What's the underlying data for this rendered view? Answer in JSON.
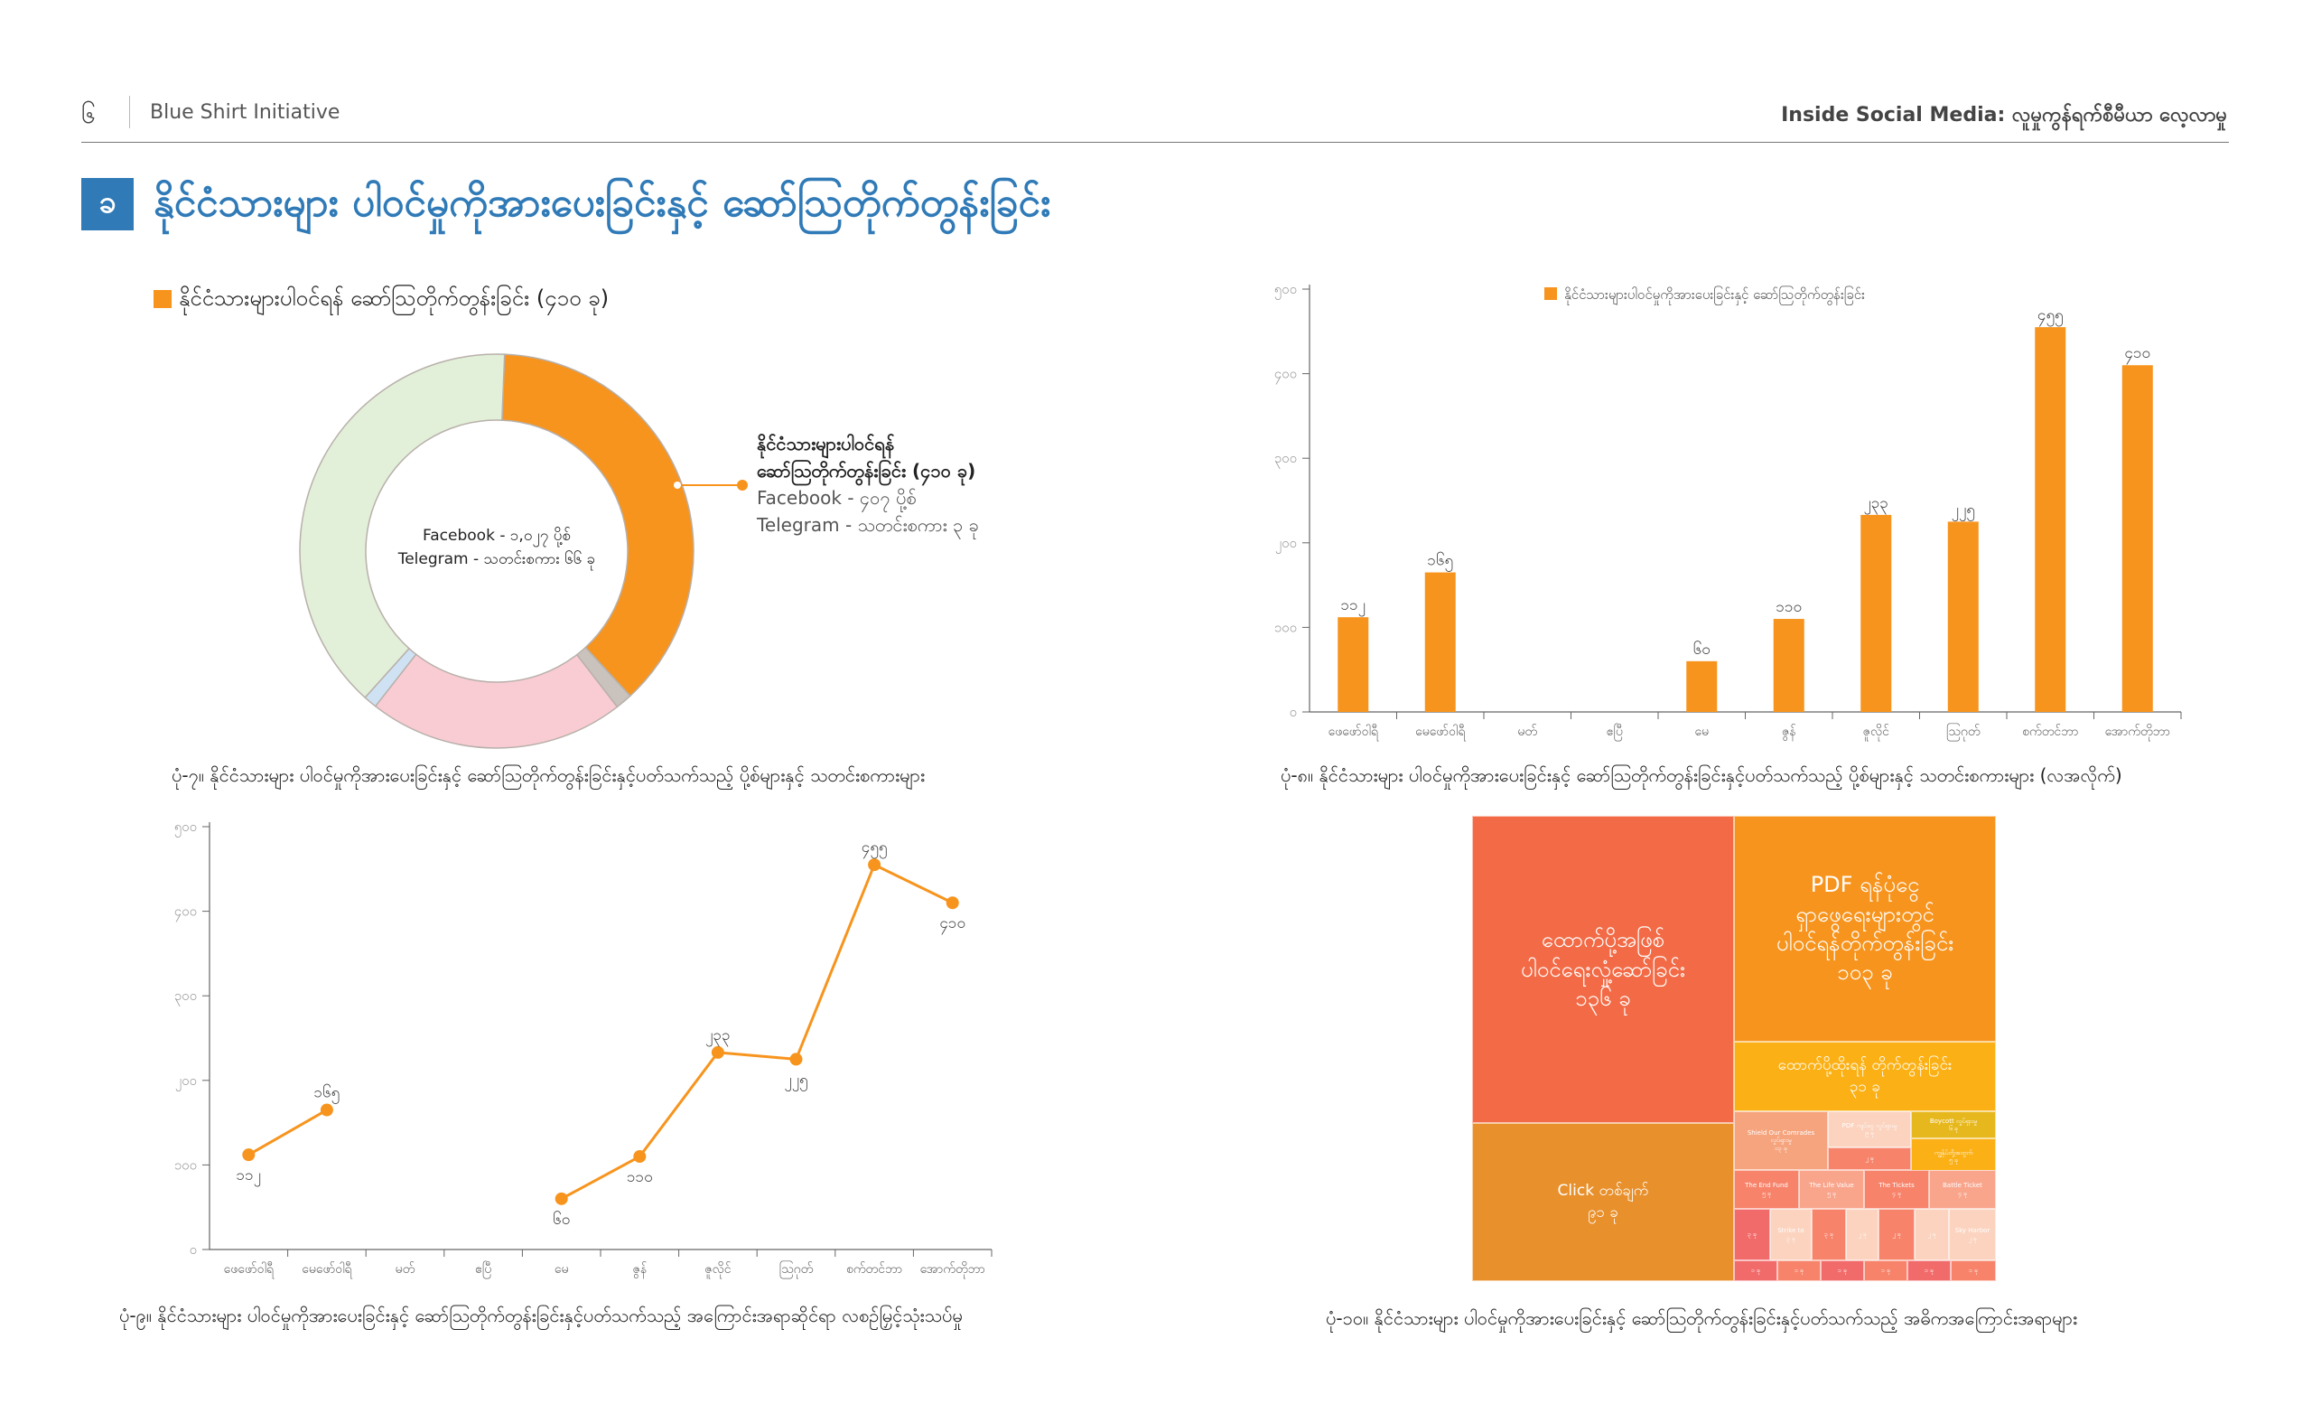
{
  "header": {
    "page_number": "၆",
    "org_name": "Blue Shirt Initiative",
    "report_title": "Inside Social Media: လူမှုကွန်ရက်စီမီယာ လေ့လာမှု"
  },
  "section": {
    "badge": "ခ",
    "title": "နိုင်ငံသားများ ပါဝင်မှုကိုအားပေးခြင်းနှင့် ဆော်သြတိုက်တွန်းခြင်း"
  },
  "colors": {
    "accent_blue": "#2f7ab7",
    "orange": "#f7941d",
    "light_green": "#e2efd9",
    "pink": "#f9ccd3",
    "light_blue": "#cfe2f3"
  },
  "donut": {
    "legend": "နိုင်ငံသားများပါဝင်ရန် ဆော်သြတိုက်တွန်းခြင်း (၄၁၀ ခု)",
    "center_line1": "Facebook - ၁,၀၂၇ ပို့စ်",
    "center_line2": "Telegram - သတင်းစကား ၆၆ ခု",
    "callout_line1": "နိုင်ငံသားများပါဝင်ရန်",
    "callout_line2": "ဆော်သြတိုက်တွန်းခြင်း (၄၁၀ ခု)",
    "callout_line3": "Facebook  -   ၄၀၇ ပို့စ်",
    "callout_line4": "Telegram  -   သတင်းစကား ၃ ခု",
    "caption": "ပုံ-၇။ နိုင်ငံသားများ ပါဝင်မှုကိုအားပေးခြင်းနှင့် ဆော်သြတိုက်တွန်းခြင်းနှင့်ပတ်သက်သည့် ပို့စ်များနှင့် သတင်းစကားများ"
  },
  "bar": {
    "caption": "ပုံ-၈။ နိုင်ငံသားများ ပါဝင်မှုကိုအားပေးခြင်းနှင့် ဆော်သြတိုက်တွန်းခြင်းနှင့်ပတ်သက်သည့် ပို့စ်များနှင့် သတင်းစကားများ (လအလိုက်)"
  },
  "line": {
    "caption": "ပုံ-၉။ နိုင်ငံသားများ ပါဝင်မှုကိုအားပေးခြင်းနှင့် ဆော်သြတိုက်တွန်းခြင်းနှင့်ပတ်သက်သည့် အကြောင်းအရာဆိုင်ရာ လစဉ်မြှင့်သုံးသပ်မှု"
  },
  "treemap": {
    "caption": "ပုံ-၁၀။  နိုင်ငံသားများ ပါဝင်မှုကိုအားပေးခြင်းနှင့် ဆော်သြတိုက်တွန်းခြင်းနှင့်ပတ်သက်သည့် အဓိကအကြောင်းအရာများ",
    "cells": [
      {
        "label": "ထောက်ပို့အဖြစ်\nပါဝင်ရေးလှုံ့ဆော်ခြင်း\n၁၃၆ ခု",
        "color": "#f26b46"
      },
      {
        "label": "PDF ရန်ပုံငွေ\nရှာဖွေရေးများတွင်\nပါဝင်ရန်တိုက်တွန်းခြင်း\n၁၀၃ ခု",
        "color": "#f7941d"
      },
      {
        "label": "ထောက်ပို့ထိုးရန် တိုက်တွန်းခြင်း\n၃၁ ခု",
        "color": "#fbb116"
      },
      {
        "label": "Click တစ်ချက်\n၉၁ ခု",
        "color": "#e8902c"
      },
      {
        "label": "Shield Our Comrades\nလှုပ်ရှားမှု\n၁၃ ခု",
        "color": "#f6a47e"
      },
      {
        "label": "PDF ကျပ်ငွေ လှုပ်ရှားမှု\n၉ ခု",
        "color": "#fbd3bf"
      },
      {
        "label": "Boycott လှုပ်ရှားမှု\n၆ ခု",
        "color": "#e7b81d"
      },
      {
        "label": "ကျွန်ုပ်တို့အတွက်\n၅ ခု",
        "color": "#fbb116"
      },
      {
        "label": "The End Fund\n၅ ခု",
        "color": "#f7836a"
      },
      {
        "label": "The Life Value\n၅ ခု",
        "color": "#f9a58c"
      },
      {
        "label": "The Tickets\n၄ ခု",
        "color": "#f7836a"
      },
      {
        "label": "Battle Ticket\n၄ ခု",
        "color": "#f9a58c"
      },
      {
        "label": "၃ ခု",
        "color": "#f26b6b"
      },
      {
        "label": "Strike to\n၃ ခု",
        "color": "#fbd3bf"
      },
      {
        "label": "၃ ခု",
        "color": "#f7836a"
      },
      {
        "label": "၂ ခု",
        "color": "#fbd3bf"
      },
      {
        "label": "၂ ခု",
        "color": "#f7836a"
      },
      {
        "label": "၂ ခု",
        "color": "#fbd3bf"
      },
      {
        "label": "Sky Harbor\n၂ ခု",
        "color": "#fbd3bf"
      },
      {
        "label": "၂ ခု",
        "color": "#f7836a"
      },
      {
        "label": "၁ ခု",
        "color": "#f26b6b"
      },
      {
        "label": "၁ ခု",
        "color": "#f7836a"
      },
      {
        "label": "၁ ခု",
        "color": "#f26b6b"
      },
      {
        "label": "၁ ခု",
        "color": "#f7836a"
      },
      {
        "label": "၁ ခု",
        "color": "#f26b6b"
      },
      {
        "label": "၁ ခု",
        "color": "#f7836a"
      }
    ]
  },
  "chart_data": [
    {
      "type": "pie",
      "title": "နိုင်ငံသားများပါဝင်ရန် ဆော်သြတိုက်တွန်းခြင်း (၄၁၀ ခု)",
      "slices": [
        {
          "label": "နိုင်ငံသားများပါဝင်ရန် ဆော်သြတိုက်တွန်းခြင်း (၄၁၀ ခု)",
          "value": 410,
          "color": "#f7941d"
        },
        {
          "value": 15,
          "color": "#c9c2bd"
        },
        {
          "value": 230,
          "color": "#f9ccd3"
        },
        {
          "value": 12,
          "color": "#cfe2f3"
        },
        {
          "value": 426,
          "color": "#e2efd9"
        }
      ]
    },
    {
      "type": "bar",
      "legend": "နိုင်ငံသားများပါဝင်မှုကိုအားပေးခြင်းနှင့် ဆော်သြတိုက်တွန်းခြင်း",
      "categories": [
        "ဖေဖော်ဝါရီ",
        "မေဖော်ဝါရီ",
        "မတ်",
        "ဧပြီ",
        "မေ",
        "ဇွန်",
        "ဇူလိုင်",
        "ဩဂုတ်",
        "စက်တင်ဘာ",
        "အောက်တိုဘာ"
      ],
      "values": [
        112,
        165,
        null,
        null,
        60,
        110,
        233,
        225,
        455,
        410
      ],
      "value_labels": [
        "၁၁၂",
        "၁၆၅",
        "",
        "",
        "၆၀",
        "၁၁၀",
        "၂၃၃",
        "၂၂၅",
        "၄၅၅",
        "၄၁၀"
      ],
      "yticks": [
        "၀",
        "၁၀၀",
        "၂၀၀",
        "၃၀၀",
        "၄၀၀",
        "၅၀၀"
      ],
      "ylim": [
        0,
        500
      ]
    },
    {
      "type": "line",
      "categories": [
        "ဖေဖော်ဝါရီ",
        "မေဖော်ဝါရီ",
        "မတ်",
        "ဧပြီ",
        "မေ",
        "ဇွန်",
        "ဇူလိုင်",
        "ဩဂုတ်",
        "စက်တင်ဘာ",
        "အောက်တိုဘာ"
      ],
      "values": [
        112,
        165,
        null,
        null,
        60,
        110,
        233,
        225,
        455,
        410
      ],
      "value_labels": [
        "၁၁၂",
        "၁၆၅",
        "",
        "",
        "၆၀",
        "၁၁၀",
        "၂၃၃",
        "၂၂၅",
        "၄၅၅",
        "၄၁၀"
      ],
      "yticks": [
        "၀",
        "၁၀၀",
        "၂၀၀",
        "၃၀၀",
        "၄၀၀",
        "၅၀၀"
      ],
      "ylim": [
        0,
        500
      ]
    },
    {
      "type": "heatmap",
      "subtype": "treemap",
      "items": [
        {
          "label": "ထောက်ပို့အဖြစ် ပါဝင်ရေးလှုံ့ဆော်ခြင်း",
          "value": 136
        },
        {
          "label": "PDF ရန်ပုံငွေ ရှာဖွေရေးများတွင် ပါဝင်ရန်တိုက်တွန်းခြင်း",
          "value": 103
        },
        {
          "label": "Click တစ်ချက်",
          "value": 91
        },
        {
          "label": "ထောက်ပို့ထိုးရန် တိုက်တွန်းခြင်း",
          "value": 31
        }
      ]
    }
  ]
}
